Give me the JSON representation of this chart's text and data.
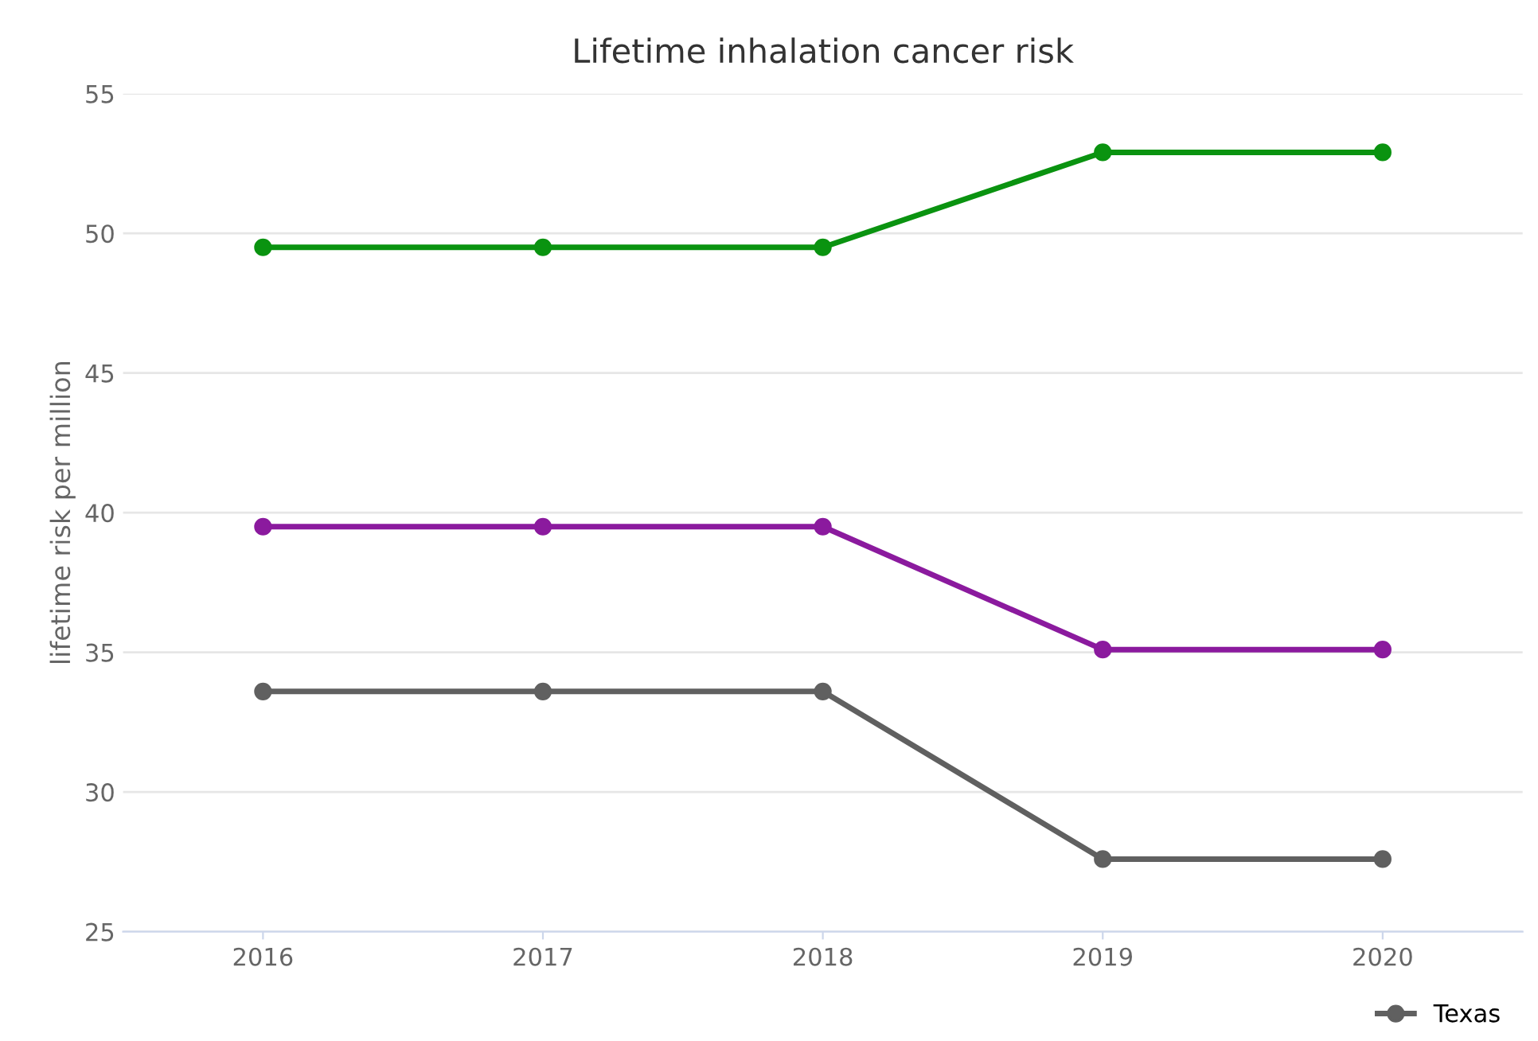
{
  "chart_data": {
    "type": "line",
    "title": "Lifetime inhalation cancer risk",
    "ylabel": "lifetime risk per million",
    "categories": [
      "2016",
      "2017",
      "2018",
      "2019",
      "2020"
    ],
    "series": [
      {
        "name": "Texas",
        "color": "#606060",
        "values": [
          33.6,
          33.6,
          33.6,
          27.6,
          27.6
        ]
      },
      {
        "color": "#8b1a9e",
        "values": [
          39.5,
          39.5,
          39.5,
          35.1,
          35.1
        ]
      },
      {
        "color": "#0a9310",
        "values": [
          49.5,
          49.5,
          49.5,
          52.9,
          52.9
        ]
      }
    ],
    "ylim": [
      25,
      55
    ],
    "yticks": [
      25,
      30,
      35,
      40,
      45,
      50,
      55
    ],
    "grid": "y",
    "legend": "bottom right",
    "marker": "circle",
    "line_style": "solid"
  }
}
